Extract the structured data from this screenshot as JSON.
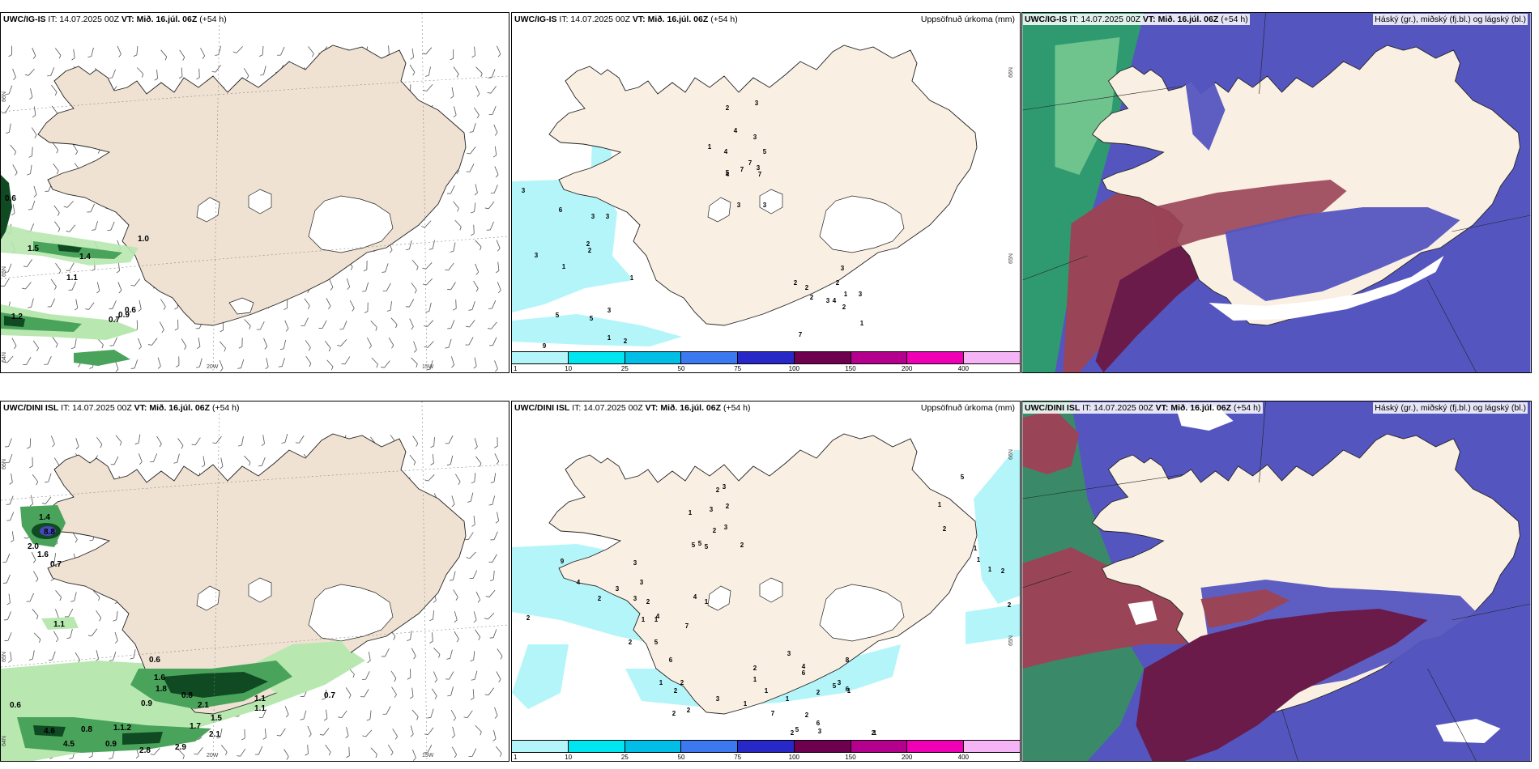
{
  "panels": {
    "p1": {
      "model": "UWC/IG-IS",
      "it": "IT: 14.07.2025 00Z",
      "vt_label": "VT:",
      "vt": "Mið. 16.júl. 06Z",
      "lead": "(+54 h)",
      "lat_labels": [
        "66N",
        "65N",
        "64N"
      ],
      "lon_labels": [
        "20W",
        "15W"
      ],
      "values": [
        "0.6",
        "1.0",
        "1.4",
        "1.1",
        "1.2",
        "0.6",
        "0.7",
        "0.9",
        "1.5"
      ]
    },
    "p2": {
      "model": "UWC/IG-IS",
      "it": "IT: 14.07.2025 00Z",
      "vt_label": "VT:",
      "vt": "Mið. 16.júl. 06Z",
      "lead": "(+54 h)",
      "right_title": "Uppsöfnuð úrkoma (mm)",
      "lat_labels": [
        "66N",
        "65N"
      ],
      "values": [
        "3",
        "2",
        "3",
        "4",
        "3",
        "1",
        "5",
        "4",
        "7",
        "7",
        "4",
        "3",
        "5",
        "3",
        "3",
        "7",
        "6",
        "3",
        "3",
        "2",
        "2",
        "1",
        "3",
        "1",
        "3",
        "1",
        "5",
        "5",
        "2",
        "9",
        "1",
        "2",
        "7",
        "2",
        "2",
        "3",
        "4",
        "2",
        "2",
        "1",
        "3",
        "1",
        "2",
        "3"
      ]
    },
    "p3": {
      "model": "UWC/IG-IS",
      "it": "IT: 14.07.2025 00Z",
      "vt_label": "VT:",
      "vt": "Mið. 16.júl. 06Z",
      "lead": "(+54 h)",
      "right_title": "Háský (gr.), miðský (fj.bl.) og lágský (bl.)"
    },
    "p4": {
      "model": "UWC/DINI ISL",
      "it": "IT: 14.07.2025 00Z",
      "vt_label": "VT:",
      "vt": "Mið. 16.júl. 06Z",
      "lead": "(+54 h)",
      "lat_labels": [
        "66N",
        "65N",
        "64N"
      ],
      "lon_labels": [
        "20W",
        "15W"
      ],
      "values": [
        "1.4",
        "8.8",
        "2.0",
        "1.6",
        "0.7",
        "1.1",
        "0.6",
        "0.8",
        "1.6",
        "1.8",
        "0.6",
        "0.9",
        "2.1",
        "1.5",
        "1.1",
        "0.7",
        "4.6",
        "0.8",
        "1.1.2",
        "4.5",
        "0.9",
        "2.8",
        "2.9",
        "1.1",
        "1.7",
        "2.1"
      ]
    },
    "p5": {
      "model": "UWC/DINI ISL",
      "it": "IT: 14.07.2025 00Z",
      "vt_label": "VT:",
      "vt": "Mið. 16.júl. 06Z",
      "lead": "(+54 h)",
      "right_title": "Uppsöfnuð úrkoma (mm)",
      "lat_labels": [
        "66N",
        "65N"
      ],
      "values": [
        "2",
        "3",
        "3",
        "2",
        "3",
        "5",
        "1",
        "2",
        "5",
        "5",
        "2",
        "9",
        "2",
        "4",
        "2",
        "3",
        "3",
        "3",
        "2",
        "3",
        "1",
        "1",
        "2",
        "5",
        "4",
        "6",
        "2",
        "7",
        "1",
        "2",
        "4",
        "1",
        "2",
        "2",
        "3",
        "1",
        "1",
        "1",
        "2",
        "1",
        "6",
        "1",
        "2",
        "2",
        "4",
        "5",
        "7",
        "3",
        "8",
        "2",
        "2",
        "3",
        "3",
        "5",
        "6",
        "6",
        "1",
        "5",
        "1",
        "2",
        "1",
        "1",
        "1",
        "2",
        "2"
      ]
    },
    "p6": {
      "model": "UWC/DINI ISL",
      "it": "IT: 14.07.2025 00Z",
      "vt_label": "VT:",
      "vt": "Mið. 16.júl. 06Z",
      "lead": "(+54 h)",
      "right_title": "Háský (gr.), miðský (fj.bl.) og lágský (bl.)"
    }
  },
  "colorbar": {
    "labels": [
      "1",
      "10",
      "25",
      "50",
      "75",
      "100",
      "150",
      "200",
      "400"
    ],
    "colors": [
      "#b4f5fa",
      "#00e6f0",
      "#00bee6",
      "#3c78f0",
      "#2828c8",
      "#6e0050",
      "#b4008c",
      "#f000b4",
      "#f5b4f5"
    ]
  },
  "colors": {
    "land": "#f9efe2",
    "land_windpanel": "#efe2d2",
    "glacier": "#ffffff",
    "precip_light": "#b4f5fa",
    "green_light": "#b8e8b0",
    "green_mid": "#4aa35a",
    "green_dark": "#0f4a22",
    "cloud_high": "#3aa86a",
    "cloud_mid": "#a83a4a",
    "cloud_low": "#3a3aaa"
  }
}
